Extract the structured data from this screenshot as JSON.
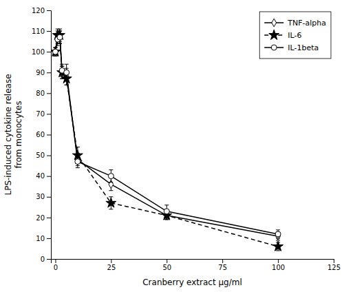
{
  "chart_data": {
    "type": "line",
    "x": [
      0,
      1,
      2,
      3,
      5,
      10,
      25,
      50,
      100
    ],
    "series": [
      {
        "name": "TNF-alpha",
        "color": "#000000",
        "marker": "diamond",
        "line_style": "solid",
        "values": [
          100,
          107,
          107,
          90,
          88,
          48,
          36,
          21,
          11
        ],
        "errors": [
          2,
          3,
          3,
          3,
          4,
          3,
          3,
          2,
          2
        ]
      },
      {
        "name": "IL-6",
        "color": "#000000",
        "marker": "star",
        "line_style": "dashed",
        "values": [
          100,
          108,
          108,
          90,
          87,
          50,
          27,
          21,
          6
        ],
        "errors": [
          2,
          3,
          3,
          3,
          3,
          4,
          3,
          2,
          2
        ]
      },
      {
        "name": "IL-1beta",
        "color": "#000000",
        "marker": "circle",
        "line_style": "solid",
        "values": [
          100,
          106,
          107,
          91,
          90,
          47,
          40,
          23,
          12
        ],
        "errors": [
          2,
          3,
          3,
          3,
          4,
          3,
          3,
          3,
          2
        ]
      }
    ],
    "xlabel": "Cranberry extract μg/ml",
    "ylabel": "LPS-induced cytokine release\nfrom monocytes",
    "xlim": [
      -2,
      125
    ],
    "ylim": [
      0,
      120
    ],
    "xticks": [
      0,
      25,
      50,
      75,
      100,
      125
    ],
    "yticks": [
      0,
      10,
      20,
      30,
      40,
      50,
      60,
      70,
      80,
      90,
      100,
      110,
      120
    ],
    "grid": false,
    "legend": "upper-right"
  }
}
